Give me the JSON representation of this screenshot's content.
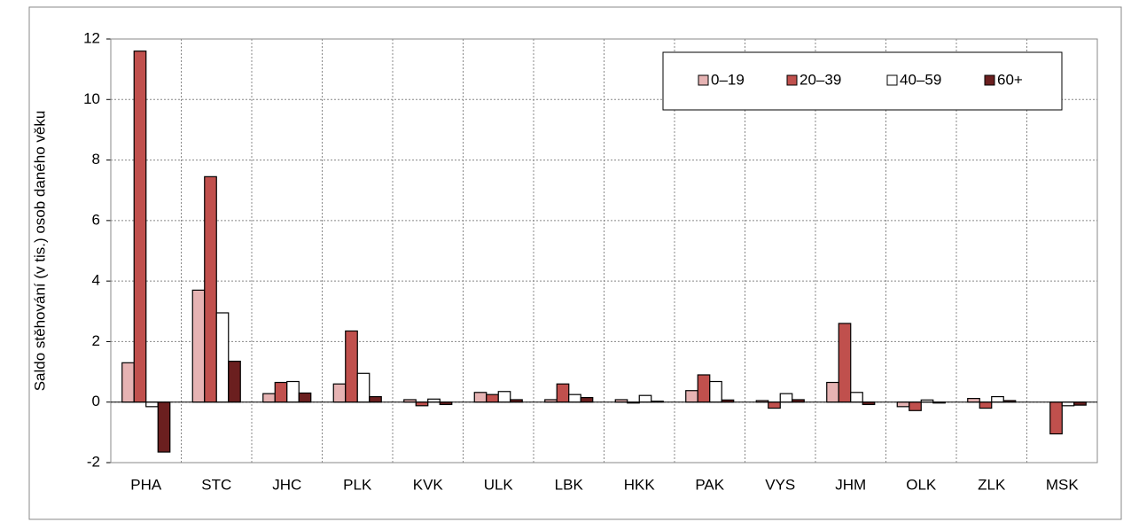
{
  "chart_data": {
    "type": "bar",
    "y_label": "Saldo stěhování (v tis.) osob daného věku",
    "categories": [
      "PHA",
      "STC",
      "JHC",
      "PLK",
      "KVK",
      "ULK",
      "LBK",
      "HKK",
      "PAK",
      "VYS",
      "JHM",
      "OLK",
      "ZLK",
      "MSK"
    ],
    "series": [
      {
        "name": "0–19",
        "color": "#e6b3b3",
        "values": [
          1.3,
          3.7,
          0.28,
          0.6,
          0.08,
          0.32,
          0.08,
          0.08,
          0.38,
          0.05,
          0.65,
          -0.15,
          0.12,
          0.0
        ]
      },
      {
        "name": "20–39",
        "color": "#c0504d",
        "values": [
          11.6,
          7.45,
          0.65,
          2.35,
          -0.12,
          0.25,
          0.6,
          -0.03,
          0.9,
          -0.2,
          2.6,
          -0.28,
          -0.2,
          -1.05
        ]
      },
      {
        "name": "40–59",
        "color": "#ffffff",
        "values": [
          -0.15,
          2.95,
          0.68,
          0.95,
          0.1,
          0.35,
          0.25,
          0.22,
          0.68,
          0.28,
          0.32,
          0.07,
          0.18,
          -0.12
        ]
      },
      {
        "name": "60+",
        "color": "#6b1f1f",
        "values": [
          -1.65,
          1.35,
          0.3,
          0.18,
          -0.08,
          0.08,
          0.15,
          0.03,
          0.07,
          0.08,
          -0.08,
          -0.03,
          0.05,
          -0.1
        ]
      }
    ],
    "ylim": [
      -2,
      12
    ],
    "yticks": [
      -2,
      0,
      2,
      4,
      6,
      8,
      10,
      12
    ],
    "grid": true,
    "legend": "top-right"
  }
}
